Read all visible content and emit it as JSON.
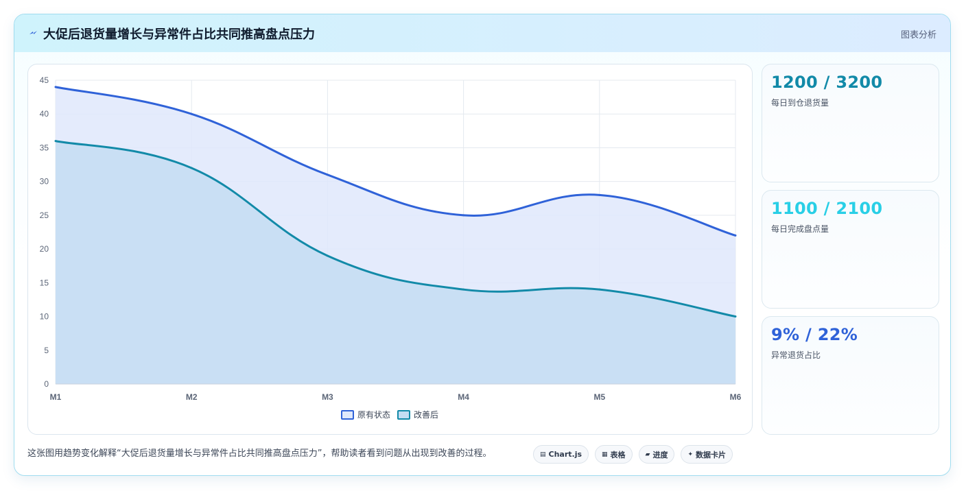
{
  "header": {
    "icon": "lightning-icon",
    "title": "大促后退货量增长与异常件占比共同推高盘点压力",
    "link_label": "图表分析"
  },
  "chart_data": {
    "type": "area",
    "categories": [
      "M1",
      "M2",
      "M3",
      "M4",
      "M5",
      "M6"
    ],
    "series": [
      {
        "name": "原有状态",
        "values": [
          44,
          40,
          31,
          25,
          28,
          22
        ],
        "color": "#2f62d8",
        "fill": "#dfe8fb"
      },
      {
        "name": "改善后",
        "values": [
          36,
          32,
          19,
          14,
          14,
          10
        ],
        "color": "#128aa8",
        "fill": "#c4ddf2"
      }
    ],
    "ylim": [
      0,
      45
    ],
    "yticks": [
      0,
      5,
      10,
      15,
      20,
      25,
      30,
      35,
      40,
      45
    ],
    "grid": true,
    "legend_position": "bottom",
    "title": "",
    "xlabel": "",
    "ylabel": ""
  },
  "stats": [
    {
      "value": "1200 / 3200",
      "label": "每日到仓退货量",
      "color": "#128aa8"
    },
    {
      "value": "1100 / 2100",
      "label": "每日完成盘点量",
      "color": "#29cfe6"
    },
    {
      "value": "9% / 22%",
      "label": "异常退货占比",
      "color": "#2f62d8"
    }
  ],
  "caption": "这张图用趋势变化解释“大促后退货量增长与异常件占比共同推高盘点压力”，帮助读者看到问题从出现到改善的过程。",
  "tags": [
    {
      "icon": "chart-icon",
      "glyph": "▤",
      "label": "Chart.js"
    },
    {
      "icon": "table-icon",
      "glyph": "▦",
      "label": "表格"
    },
    {
      "icon": "progress-icon",
      "glyph": "▰",
      "label": "进度"
    },
    {
      "icon": "card-icon",
      "glyph": "✦",
      "label": "数据卡片"
    }
  ]
}
